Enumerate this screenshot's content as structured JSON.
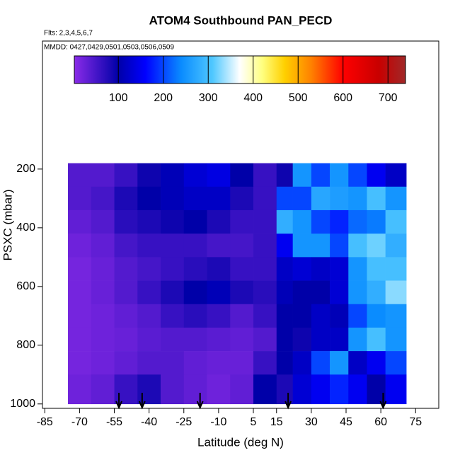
{
  "chart_data": {
    "type": "heatmap",
    "title": "ATOM4 Southbound PAN_PECD",
    "subtitle": "Flts: 2,3,4,5,6,7",
    "annotation": "MMDD: 0427,0429,0501,0503,0506,0509",
    "x_label": "Latitude (deg N)",
    "y_label": "PSXC (mbar)",
    "xlim": [
      -86,
      85
    ],
    "xticks": [
      -85,
      -70,
      -55,
      -40,
      -25,
      -10,
      5,
      15,
      30,
      45,
      60,
      75
    ],
    "ylim": [
      1015,
      -236
    ],
    "yticks": [
      200,
      400,
      600,
      800,
      1000
    ],
    "x_edges": [
      -75,
      -65,
      -55,
      -45,
      -35,
      -25,
      -15,
      -5,
      5,
      15,
      22,
      30,
      38,
      46,
      54,
      62,
      71
    ],
    "y_edges": [
      180,
      260,
      340,
      420,
      500,
      580,
      660,
      740,
      820,
      900,
      1000
    ],
    "z": [
      [
        40,
        40,
        60,
        90,
        110,
        130,
        140,
        100,
        60,
        90,
        250,
        200,
        250,
        200,
        150,
        120
      ],
      [
        40,
        50,
        80,
        100,
        110,
        120,
        120,
        80,
        60,
        200,
        200,
        270,
        260,
        250,
        300,
        250
      ],
      [
        30,
        40,
        70,
        80,
        90,
        100,
        80,
        60,
        60,
        280,
        250,
        200,
        180,
        220,
        230,
        300
      ],
      [
        20,
        30,
        50,
        60,
        60,
        60,
        50,
        50,
        60,
        150,
        250,
        250,
        200,
        300,
        320,
        280
      ],
      [
        15,
        25,
        40,
        50,
        60,
        70,
        80,
        60,
        60,
        120,
        130,
        120,
        130,
        250,
        300,
        300
      ],
      [
        15,
        25,
        40,
        60,
        80,
        100,
        110,
        80,
        70,
        110,
        100,
        100,
        130,
        250,
        280,
        330
      ],
      [
        15,
        20,
        30,
        40,
        60,
        70,
        60,
        40,
        60,
        100,
        100,
        120,
        110,
        200,
        240,
        250
      ],
      [
        15,
        20,
        25,
        35,
        40,
        40,
        35,
        30,
        40,
        100,
        90,
        120,
        120,
        250,
        300,
        250
      ],
      [
        15,
        20,
        30,
        40,
        40,
        30,
        25,
        25,
        60,
        100,
        120,
        200,
        250,
        120,
        150,
        200
      ],
      [
        20,
        30,
        60,
        80,
        40,
        30,
        20,
        30,
        100,
        80,
        130,
        150,
        180,
        150,
        100,
        150
      ]
    ],
    "colorbar_lim": [
      2,
      739
    ],
    "colorbar_ticks": [
      100,
      200,
      300,
      400,
      500,
      600,
      700
    ],
    "colorscale": [
      {
        "value": 0,
        "color": "#8a2be8"
      },
      {
        "value": 100,
        "color": "#0000a8"
      },
      {
        "value": 160,
        "color": "#0000ff"
      },
      {
        "value": 240,
        "color": "#0a8cff"
      },
      {
        "value": 310,
        "color": "#50c8ff"
      },
      {
        "value": 370,
        "color": "#ffffff"
      },
      {
        "value": 420,
        "color": "#ffff80"
      },
      {
        "value": 470,
        "color": "#ffd000"
      },
      {
        "value": 530,
        "color": "#ff8000"
      },
      {
        "value": 600,
        "color": "#ff0000"
      },
      {
        "value": 680,
        "color": "#c80000"
      },
      {
        "value": 739,
        "color": "#a02828"
      }
    ],
    "arrows_x": [
      -53,
      -43,
      -18,
      20,
      61
    ]
  }
}
